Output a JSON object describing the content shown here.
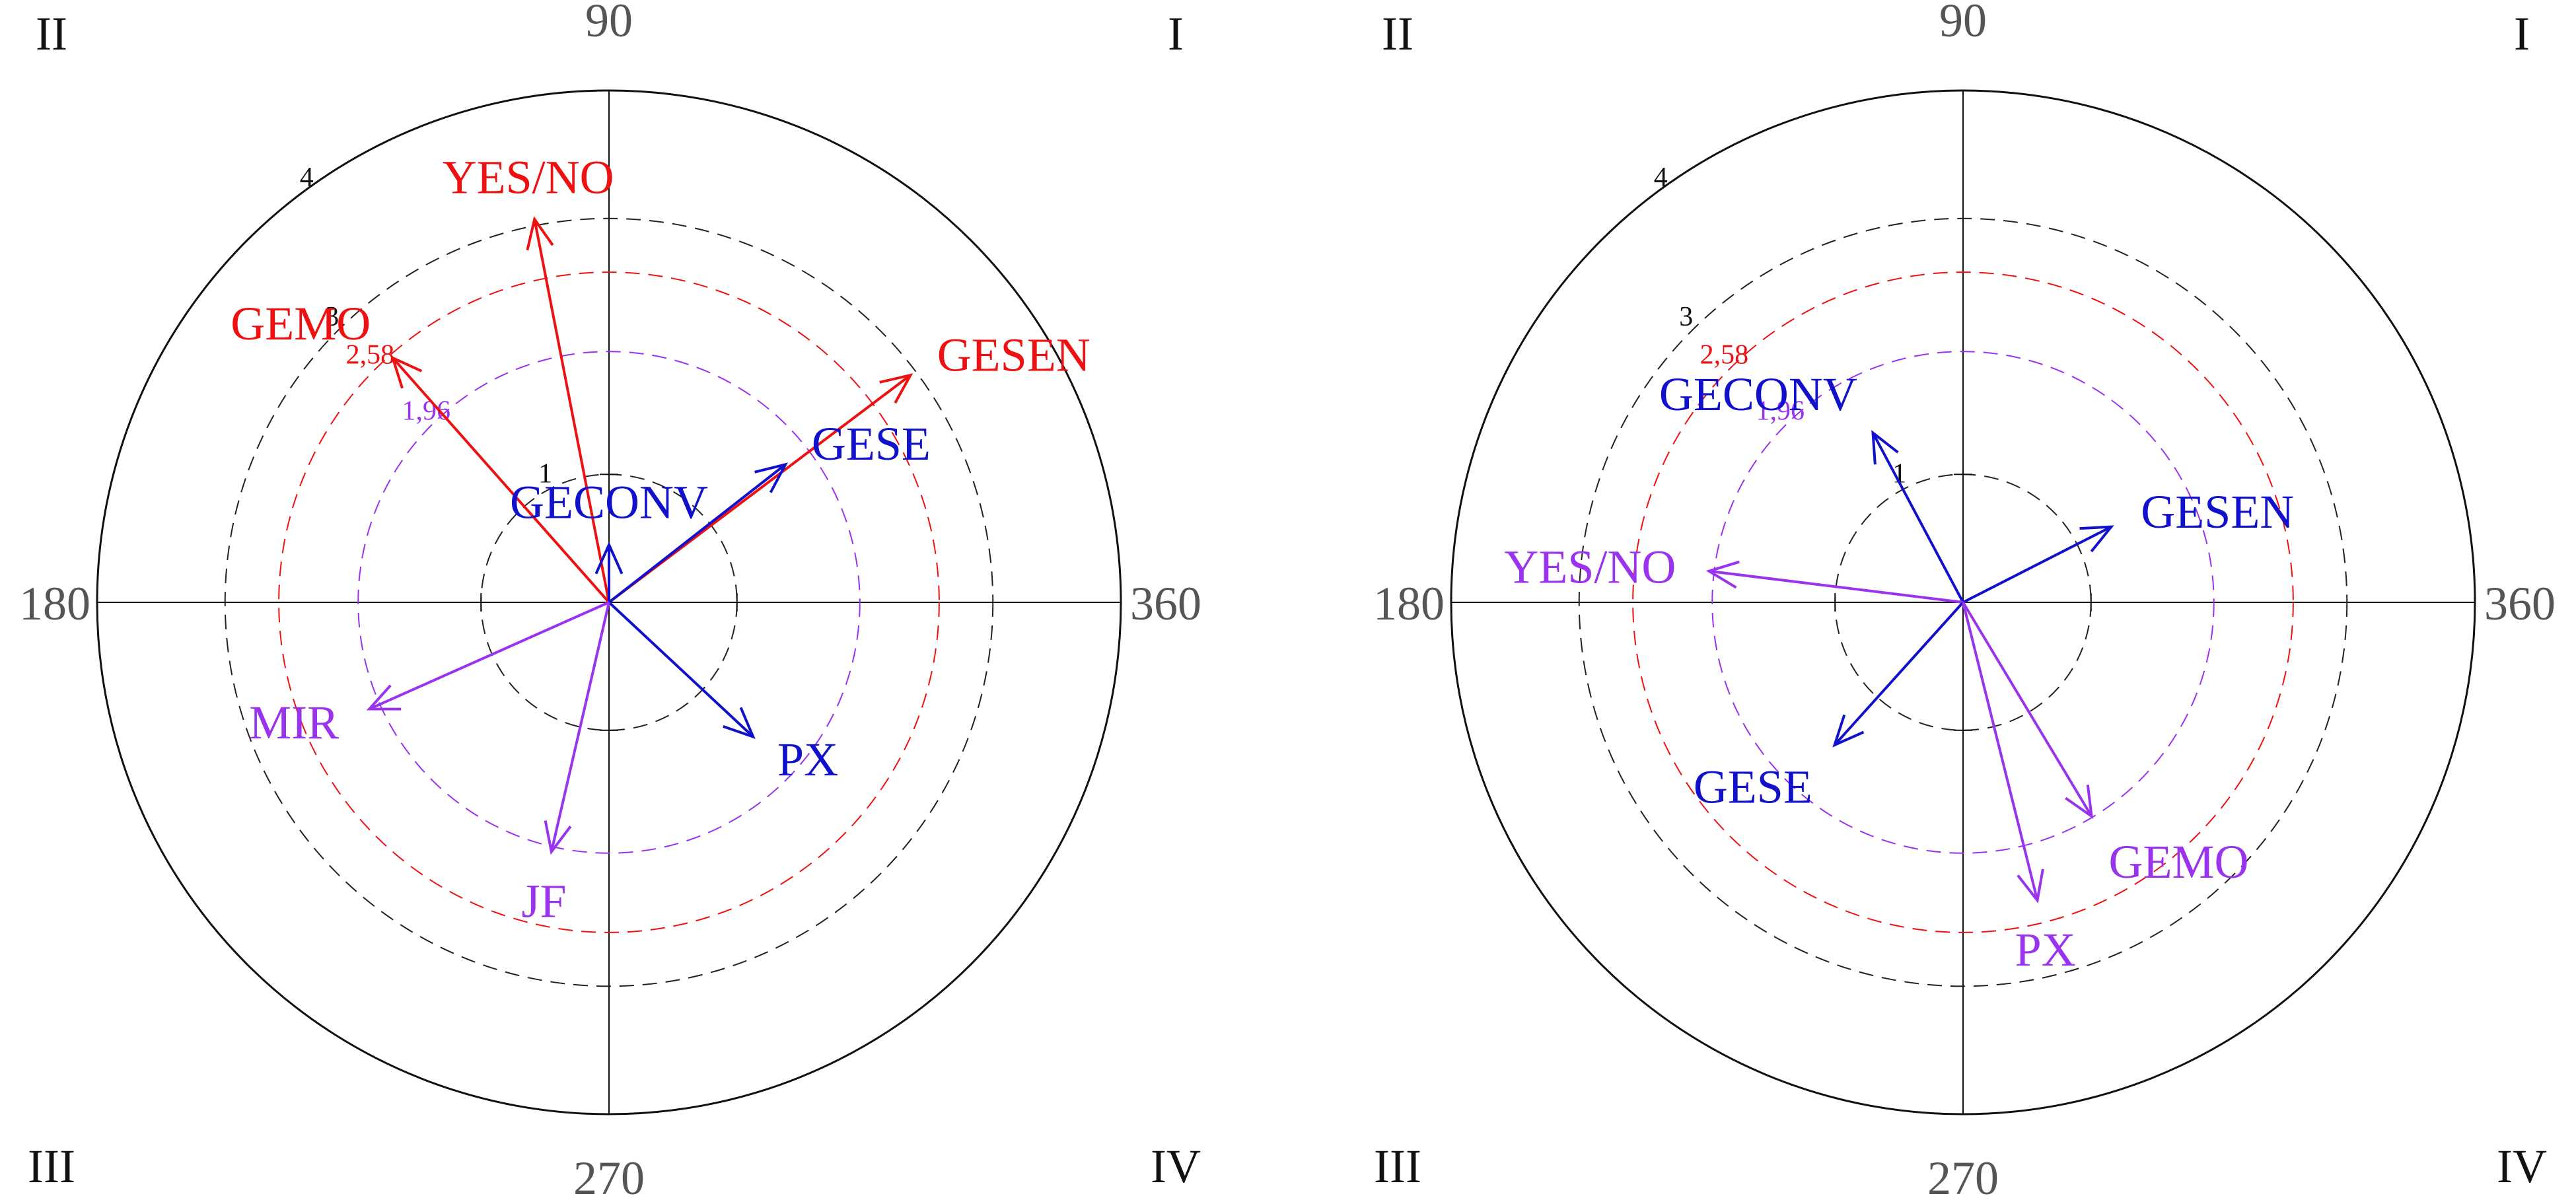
{
  "colors": {
    "red": "#ee1111",
    "blue": "#1111cc",
    "purple": "#9933ee",
    "black": "#111111",
    "gray": "#555555",
    "ring_dash_gray": "#222222"
  },
  "chart_data": [
    {
      "type": "polar-vector",
      "panel": "left",
      "angle_labels": {
        "top": "90",
        "left": "180",
        "right": "360",
        "bottom": "270"
      },
      "quadrant_labels": {
        "top_left": "II",
        "top_right": "I",
        "bottom_left": "III",
        "bottom_right": "IV"
      },
      "radius_max": 4,
      "rings": [
        {
          "r": 1,
          "label": "1",
          "color": "black"
        },
        {
          "r": 1.96,
          "label": "1,96",
          "color": "purple"
        },
        {
          "r": 2.58,
          "label": "2,58",
          "color": "red"
        },
        {
          "r": 3,
          "label": "3",
          "color": "black"
        },
        {
          "r": 4,
          "label": "4",
          "color": "black",
          "solid": true
        }
      ],
      "vectors": [
        {
          "label": "YES/NO",
          "color": "red",
          "angle": 101,
          "length": 3.05
        },
        {
          "label": "GEMO",
          "color": "red",
          "angle": 131.5,
          "length": 2.55
        },
        {
          "label": "GESEN",
          "color": "red",
          "angle": 37,
          "length": 2.95
        },
        {
          "label": "GESE",
          "color": "blue",
          "angle": 38,
          "length": 1.75
        },
        {
          "label": "GECONV",
          "color": "blue",
          "angle": 90,
          "length": 0.45
        },
        {
          "label": "PX",
          "color": "blue",
          "angle": 317,
          "length": 1.54
        },
        {
          "label": "MIR",
          "color": "purple",
          "angle": 204,
          "length": 2.05
        },
        {
          "label": "JF",
          "color": "purple",
          "angle": 257,
          "length": 2.0
        }
      ]
    },
    {
      "type": "polar-vector",
      "panel": "right",
      "angle_labels": {
        "top": "90",
        "left": "180",
        "right": "360",
        "bottom": "270"
      },
      "quadrant_labels": {
        "top_left": "II",
        "top_right": "I",
        "bottom_left": "III",
        "bottom_right": "IV"
      },
      "radius_max": 4,
      "rings": [
        {
          "r": 1,
          "label": "1",
          "color": "black"
        },
        {
          "r": 1.96,
          "label": "1,96",
          "color": "purple"
        },
        {
          "r": 2.58,
          "label": "2,58",
          "color": "red"
        },
        {
          "r": 3,
          "label": "3",
          "color": "black"
        },
        {
          "r": 4,
          "label": "4",
          "color": "black",
          "solid": true
        }
      ],
      "vectors": [
        {
          "label": "GECONV",
          "color": "blue",
          "angle": 118,
          "length": 1.5
        },
        {
          "label": "GESEN",
          "color": "blue",
          "angle": 27,
          "length": 1.3
        },
        {
          "label": "YES/NO",
          "color": "purple",
          "angle": 173,
          "length": 2.0
        },
        {
          "label": "GESE",
          "color": "blue",
          "angle": 228,
          "length": 1.5
        },
        {
          "label": "GEMO",
          "color": "purple",
          "angle": 301,
          "length": 1.95
        },
        {
          "label": "PX",
          "color": "purple",
          "angle": 284,
          "length": 2.4
        }
      ]
    }
  ]
}
